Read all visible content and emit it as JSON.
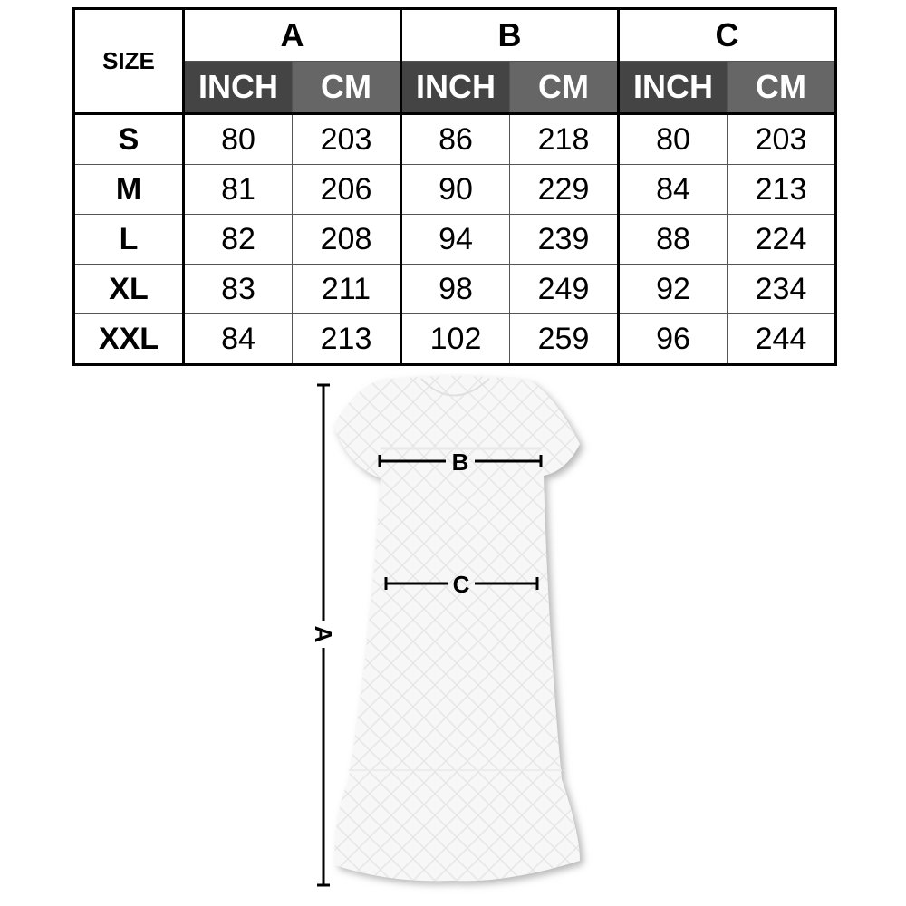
{
  "table": {
    "size_label": "SIZE",
    "groups": [
      "A",
      "B",
      "C"
    ],
    "units": [
      "INCH",
      "CM"
    ],
    "rows": [
      {
        "size": "S",
        "values": [
          "80",
          "203",
          "86",
          "218",
          "80",
          "203"
        ]
      },
      {
        "size": "M",
        "values": [
          "81",
          "206",
          "90",
          "229",
          "84",
          "213"
        ]
      },
      {
        "size": "L",
        "values": [
          "82",
          "208",
          "94",
          "239",
          "88",
          "224"
        ]
      },
      {
        "size": "XL",
        "values": [
          "83",
          "211",
          "98",
          "249",
          "92",
          "234"
        ]
      },
      {
        "size": "XXL",
        "values": [
          "84",
          "213",
          "102",
          "259",
          "96",
          "244"
        ]
      }
    ]
  },
  "diagram": {
    "label_a": "A",
    "label_b": "B",
    "label_c": "C"
  },
  "colors": {
    "inch_header": "#444444",
    "cm_header": "#666666"
  }
}
